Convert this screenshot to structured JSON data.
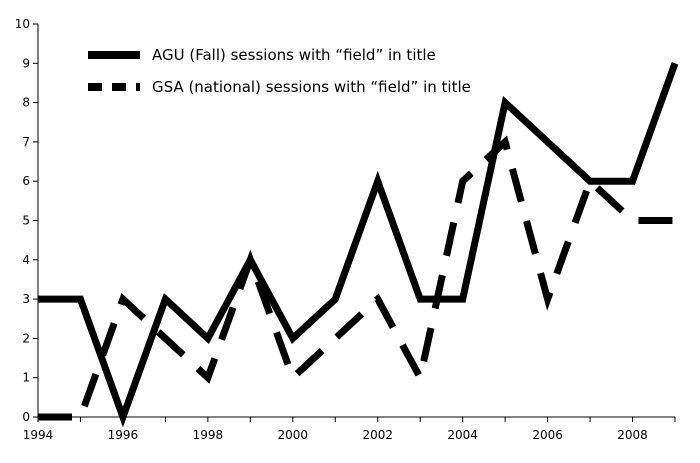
{
  "chart_data": {
    "type": "line",
    "title": "",
    "xlabel": "",
    "ylabel": "",
    "xlim": [
      1994,
      2009
    ],
    "ylim": [
      0,
      10
    ],
    "x_ticks": [
      1994,
      1996,
      1998,
      2000,
      2002,
      2004,
      2006,
      2008
    ],
    "y_ticks": [
      0,
      1,
      2,
      3,
      4,
      5,
      6,
      7,
      8,
      9,
      10
    ],
    "grid": false,
    "legend_position": "top-left",
    "series": [
      {
        "name": "AGU (Fall) sessions with “field” in title",
        "style": "solid",
        "color": "#000000",
        "points": [
          [
            1994,
            3
          ],
          [
            1995,
            3
          ],
          [
            1996,
            0
          ],
          [
            1997,
            3
          ],
          [
            1998,
            2
          ],
          [
            1999,
            4
          ],
          [
            2000,
            2
          ],
          [
            2001,
            3
          ],
          [
            2002,
            6
          ],
          [
            2003,
            3
          ],
          [
            2004,
            3
          ],
          [
            2005,
            8
          ],
          [
            2006,
            7
          ],
          [
            2007,
            6
          ],
          [
            2008,
            6
          ],
          [
            2009,
            9
          ]
        ]
      },
      {
        "name": "GSA (national) sessions with “field” in title",
        "style": "dashed",
        "color": "#000000",
        "points": [
          [
            1994,
            0
          ],
          [
            1995,
            0
          ],
          [
            1996,
            3
          ],
          [
            1997,
            2
          ],
          [
            1998,
            1
          ],
          [
            1999,
            4
          ],
          [
            2000,
            1
          ],
          [
            2001,
            2
          ],
          [
            2002,
            3
          ],
          [
            2003,
            1
          ],
          [
            2004,
            6
          ],
          [
            2005,
            7
          ],
          [
            2006,
            3
          ],
          [
            2007,
            6
          ],
          [
            2008,
            5
          ],
          [
            2009,
            5
          ]
        ]
      }
    ]
  }
}
